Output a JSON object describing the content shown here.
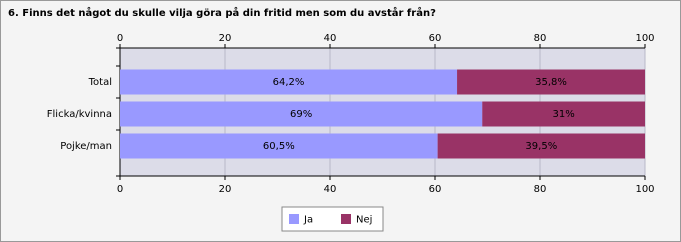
{
  "chart_data": {
    "type": "stacked-barh",
    "title": "6. Finns det något du skulle vilja göra på din fritid men som du avstår från?",
    "categories": [
      "Total",
      "Flicka/kvinna",
      "Pojke/man"
    ],
    "series": [
      {
        "name": "Ja",
        "color": "#9999ff",
        "values": [
          64.2,
          69,
          60.5
        ],
        "value_labels": [
          "64,2%",
          "69%",
          "60,5%"
        ]
      },
      {
        "name": "Nej",
        "color": "#993366",
        "values": [
          35.8,
          31,
          39.5
        ],
        "value_labels": [
          "35,8%",
          "31%",
          "39,5%"
        ]
      }
    ],
    "xlim": [
      0,
      100
    ],
    "xticks": [
      0,
      20,
      40,
      60,
      80,
      100
    ],
    "grid": true
  }
}
